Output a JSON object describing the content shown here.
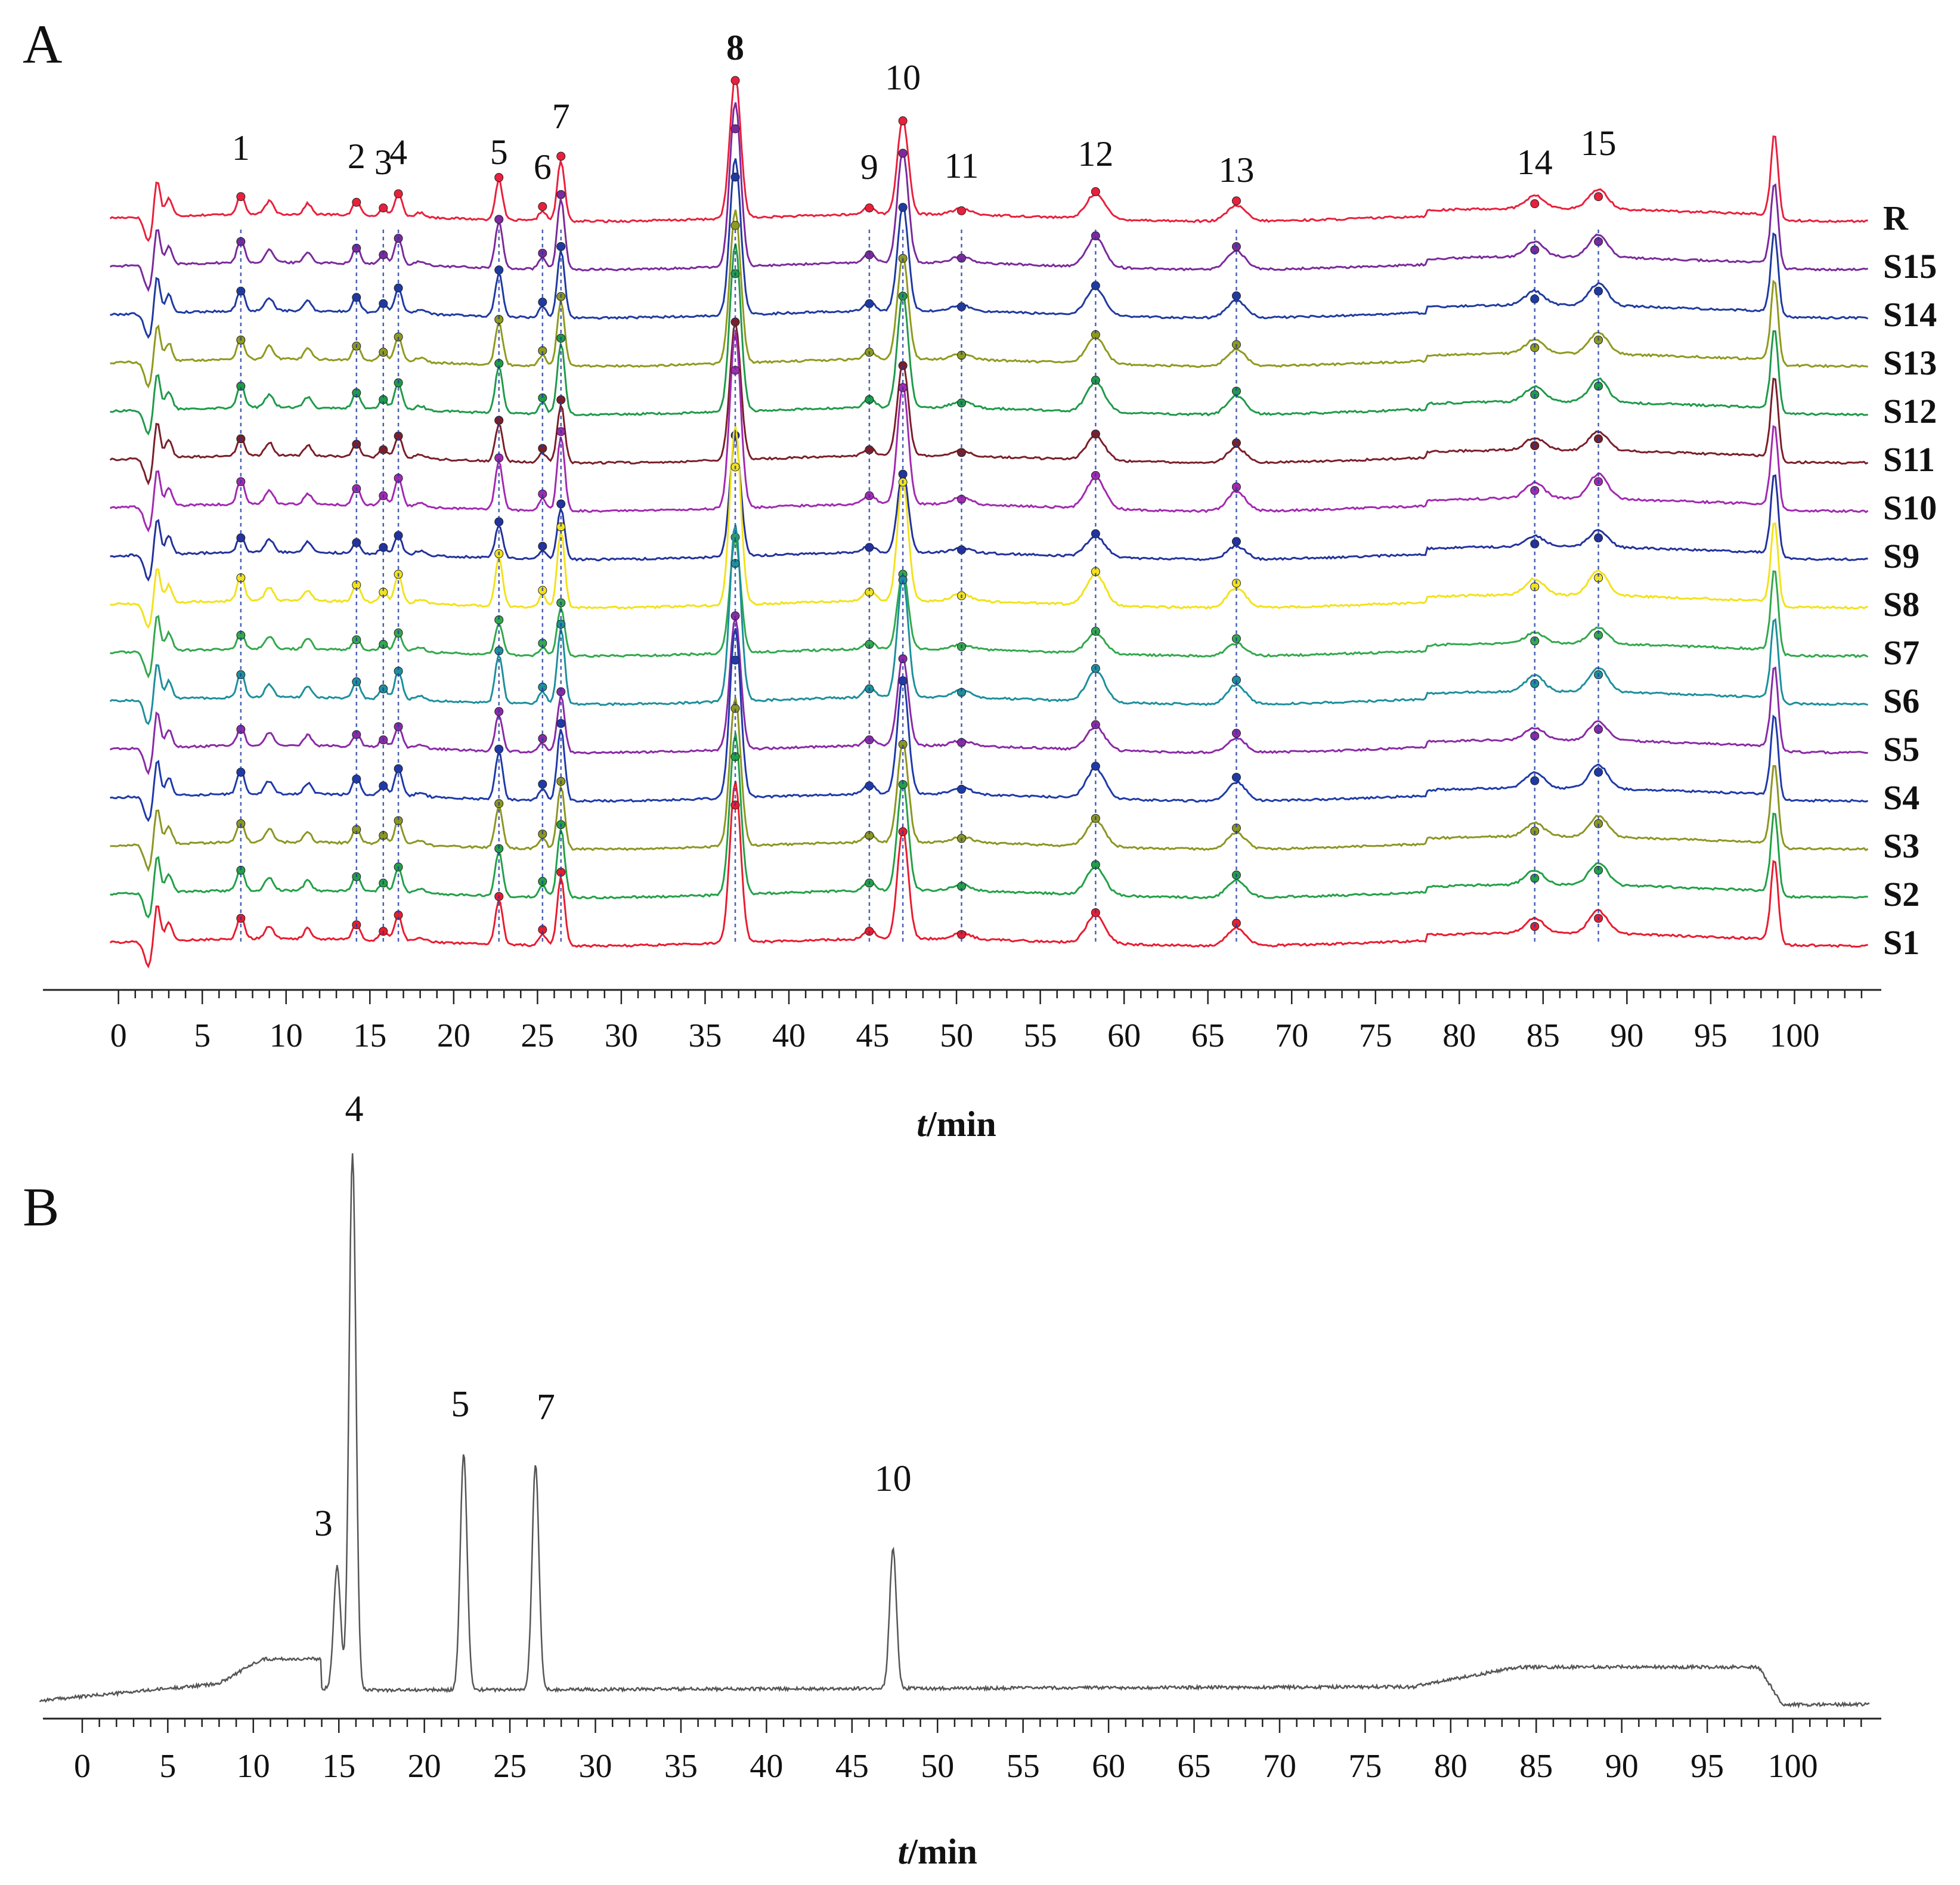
{
  "chart_data": [
    {
      "panel": "A",
      "type": "line",
      "x_label_italic": "t",
      "x_label_rest": "/min",
      "xlim": [
        0,
        105
      ],
      "x_ticks": [
        0,
        5,
        10,
        15,
        20,
        25,
        30,
        35,
        40,
        45,
        50,
        55,
        60,
        65,
        70,
        75,
        80,
        85,
        90,
        95,
        100
      ],
      "peak_labels": [
        "1",
        "2",
        "3",
        "4",
        "5",
        "6",
        "7",
        "8",
        "9",
        "10",
        "11",
        "12",
        "13",
        "14",
        "15"
      ],
      "peaks": [
        {
          "label": "1",
          "t": 7.3,
          "h": 0.28
        },
        {
          "label": "2",
          "t": 14.2,
          "h": 0.2
        },
        {
          "label": "3",
          "t": 15.8,
          "h": 0.12
        },
        {
          "label": "4",
          "t": 16.7,
          "h": 0.32
        },
        {
          "label": "5",
          "t": 22.7,
          "h": 0.55
        },
        {
          "label": "6",
          "t": 25.3,
          "h": 0.14
        },
        {
          "label": "7",
          "t": 26.4,
          "h": 0.85
        },
        {
          "label": "8",
          "t": 36.8,
          "h": 2.0
        },
        {
          "label": "9",
          "t": 44.8,
          "h": 0.12
        },
        {
          "label": "10",
          "t": 46.8,
          "h": 1.35
        },
        {
          "label": "11",
          "t": 50.3,
          "h": 0.08
        },
        {
          "label": "12",
          "t": 58.3,
          "h": 0.35
        },
        {
          "label": "13",
          "t": 66.7,
          "h": 0.22
        },
        {
          "label": "14",
          "t": 84.5,
          "h": 0.18
        },
        {
          "label": "15",
          "t": 88.3,
          "h": 0.28
        }
      ],
      "series": [
        {
          "name": "R",
          "color": "#e8203c"
        },
        {
          "name": "S15",
          "color": "#7a2a9c"
        },
        {
          "name": "S14",
          "color": "#1f3aa0"
        },
        {
          "name": "S13",
          "color": "#8f9a1e"
        },
        {
          "name": "S12",
          "color": "#1f9a4a"
        },
        {
          "name": "S11",
          "color": "#7a1f2a"
        },
        {
          "name": "S10",
          "color": "#a12ab0"
        },
        {
          "name": "S9",
          "color": "#23329c"
        },
        {
          "name": "S8",
          "color": "#f2e21a"
        },
        {
          "name": "S7",
          "color": "#32a84c"
        },
        {
          "name": "S6",
          "color": "#1d8f9c"
        },
        {
          "name": "S5",
          "color": "#8a2aa6"
        },
        {
          "name": "S4",
          "color": "#1f3aa8"
        },
        {
          "name": "S3",
          "color": "#8c9622"
        },
        {
          "name": "S2",
          "color": "#22a047"
        },
        {
          "name": "S1",
          "color": "#e81c30"
        }
      ]
    },
    {
      "panel": "B",
      "type": "line",
      "x_label_italic": "t",
      "x_label_rest": "/min",
      "xlim": [
        0,
        105
      ],
      "x_ticks": [
        0,
        5,
        10,
        15,
        20,
        25,
        30,
        35,
        40,
        45,
        50,
        55,
        60,
        65,
        70,
        75,
        80,
        85,
        90,
        95,
        100
      ],
      "peaks": [
        {
          "label": "3",
          "t": 14.9,
          "h": 0.23
        },
        {
          "label": "4",
          "t": 15.8,
          "h": 1.0
        },
        {
          "label": "5",
          "t": 22.3,
          "h": 0.44
        },
        {
          "label": "7",
          "t": 26.5,
          "h": 0.42
        },
        {
          "label": "10",
          "t": 47.4,
          "h": 0.26
        }
      ],
      "color": "#555555"
    }
  ],
  "panels": {
    "a": {
      "label": "A"
    },
    "b": {
      "label": "B"
    }
  }
}
